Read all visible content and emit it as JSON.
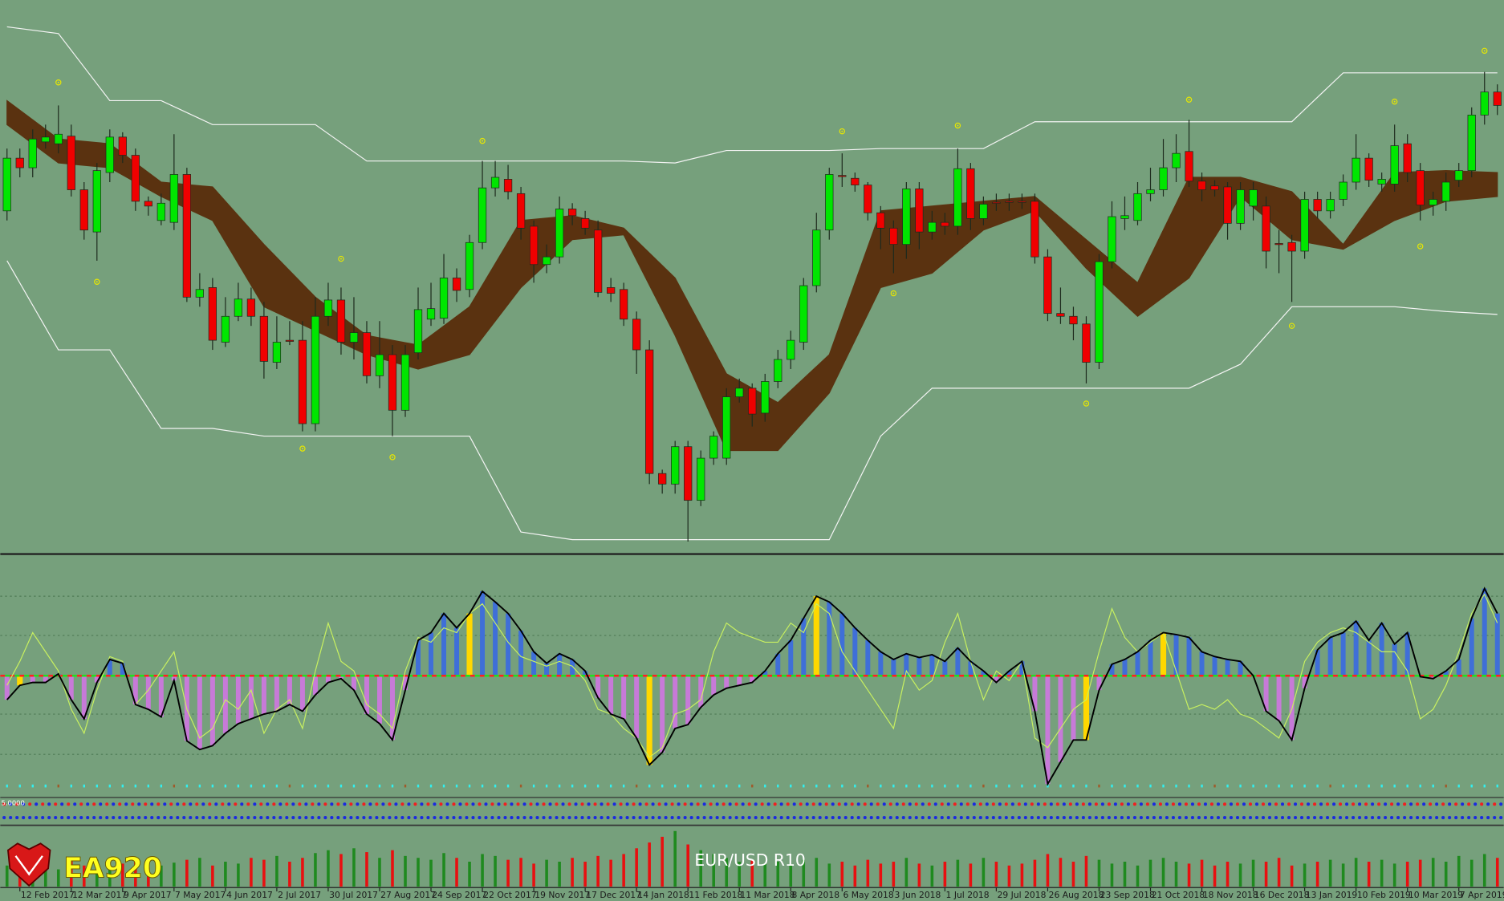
{
  "chart_data": [
    {
      "type": "candlestick",
      "ylim": [
        22,
        600
      ],
      "up_color": "#00e600",
      "down_color": "#f00000",
      "open": [
        380,
        435,
        425,
        452,
        450,
        458,
        402,
        358,
        420,
        457,
        438,
        390,
        370,
        368,
        418,
        290,
        300,
        243,
        270,
        288,
        270,
        222,
        245,
        245,
        158,
        270,
        287,
        243,
        253,
        208,
        230,
        172,
        232,
        267,
        268,
        310,
        298,
        347,
        404,
        413,
        398,
        364,
        324,
        332,
        382,
        372,
        360,
        300,
        298,
        267,
        235,
        106,
        95,
        134,
        78,
        122,
        122,
        186,
        195,
        169,
        202,
        225,
        243,
        302,
        360,
        417,
        414,
        407,
        378,
        362,
        345,
        403,
        358,
        368,
        364,
        424,
        372,
        389,
        390,
        390,
        390,
        332,
        273,
        270,
        262,
        222,
        327,
        372,
        370,
        398,
        402,
        425,
        442,
        411,
        406,
        405,
        367,
        385,
        385,
        346,
        347,
        338,
        392,
        380,
        392,
        410,
        435,
        408,
        408,
        450,
        422,
        386,
        390,
        412,
        422,
        480,
        504
      ],
      "high": [
        445,
        445,
        465,
        470,
        490,
        470,
        410,
        430,
        465,
        462,
        445,
        395,
        398,
        460,
        425,
        315,
        310,
        290,
        305,
        300,
        285,
        270,
        265,
        265,
        290,
        305,
        300,
        290,
        265,
        265,
        240,
        240,
        300,
        305,
        335,
        320,
        355,
        432,
        432,
        428,
        405,
        370,
        345,
        395,
        388,
        380,
        370,
        310,
        305,
        275,
        245,
        110,
        140,
        140,
        130,
        150,
        195,
        205,
        200,
        210,
        235,
        255,
        310,
        378,
        425,
        440,
        420,
        410,
        385,
        370,
        410,
        410,
        380,
        378,
        445,
        430,
        395,
        398,
        398,
        398,
        398,
        340,
        300,
        280,
        270,
        335,
        390,
        395,
        410,
        425,
        455,
        460,
        475,
        420,
        412,
        410,
        410,
        410,
        395,
        360,
        355,
        400,
        400,
        400,
        418,
        460,
        440,
        420,
        470,
        460,
        430,
        400,
        420,
        430,
        488,
        525,
        512
      ],
      "low": [
        370,
        415,
        415,
        445,
        440,
        395,
        350,
        328,
        410,
        430,
        380,
        375,
        365,
        360,
        285,
        280,
        235,
        238,
        265,
        260,
        205,
        215,
        240,
        150,
        150,
        260,
        230,
        225,
        200,
        195,
        145,
        165,
        225,
        260,
        262,
        285,
        290,
        340,
        395,
        392,
        350,
        305,
        315,
        325,
        365,
        355,
        290,
        285,
        260,
        210,
        95,
        85,
        85,
        35,
        72,
        115,
        115,
        180,
        155,
        160,
        195,
        215,
        235,
        295,
        350,
        405,
        400,
        370,
        340,
        315,
        330,
        340,
        350,
        355,
        355,
        360,
        365,
        380,
        380,
        382,
        325,
        265,
        262,
        245,
        200,
        215,
        320,
        360,
        365,
        390,
        395,
        410,
        405,
        390,
        395,
        350,
        360,
        370,
        320,
        315,
        285,
        330,
        372,
        372,
        385,
        402,
        405,
        400,
        400,
        410,
        370,
        375,
        380,
        405,
        415,
        470,
        480
      ],
      "close": [
        435,
        425,
        455,
        457,
        460,
        402,
        360,
        422,
        457,
        438,
        390,
        385,
        388,
        418,
        290,
        298,
        245,
        270,
        288,
        270,
        223,
        243,
        244,
        158,
        270,
        287,
        243,
        253,
        208,
        230,
        172,
        230,
        277,
        278,
        310,
        297,
        347,
        404,
        415,
        400,
        362,
        324,
        332,
        382,
        375,
        362,
        295,
        294,
        267,
        235,
        106,
        95,
        134,
        78,
        122,
        145,
        186,
        195,
        168,
        202,
        225,
        245,
        302,
        360,
        418,
        416,
        407,
        378,
        362,
        345,
        403,
        358,
        368,
        364,
        424,
        372,
        387,
        388,
        389,
        389,
        332,
        273,
        270,
        262,
        222,
        327,
        374,
        375,
        398,
        402,
        425,
        440,
        411,
        402,
        402,
        367,
        402,
        402,
        338,
        345,
        338,
        392,
        380,
        392,
        410,
        435,
        412,
        413,
        448,
        420,
        386,
        392,
        410,
        422,
        480,
        504,
        490
      ],
      "indicator_x": [
        0,
        4,
        8,
        12,
        16,
        20,
        24,
        28,
        32,
        36,
        40,
        44,
        48,
        52,
        56,
        60,
        64,
        68,
        72,
        76,
        80,
        84,
        88,
        92,
        96,
        100,
        104,
        108,
        112,
        116
      ],
      "cloud_upper": [
        495,
        455,
        450,
        410,
        405,
        345,
        290,
        250,
        240,
        280,
        370,
        375,
        362,
        310,
        210,
        180,
        230,
        380,
        385,
        390,
        395,
        350,
        305,
        415,
        415,
        400,
        345,
        420,
        422,
        420
      ],
      "cloud_lower": [
        470,
        430,
        425,
        395,
        370,
        280,
        255,
        230,
        215,
        230,
        300,
        350,
        355,
        250,
        130,
        130,
        190,
        300,
        315,
        360,
        380,
        320,
        270,
        310,
        395,
        350,
        340,
        370,
        390,
        395
      ],
      "cloud_color": "#5a3210",
      "channel_upper": [
        572,
        565,
        495,
        495,
        470,
        470,
        470,
        432,
        432,
        432,
        432,
        432,
        432,
        430,
        443,
        443,
        443,
        445,
        445,
        445,
        473,
        473,
        473,
        473,
        473,
        473,
        524,
        524,
        524,
        524
      ],
      "channel_lower": [
        328,
        235,
        235,
        153,
        153,
        145,
        145,
        145,
        145,
        145,
        45,
        37,
        37,
        37,
        37,
        37,
        37,
        145,
        195,
        195,
        195,
        195,
        195,
        195,
        220,
        280,
        280,
        280,
        275,
        272
      ],
      "channel_color": "#f4f4f4",
      "fractals": {
        "x": [
          4,
          7,
          23,
          26,
          30,
          37,
          65,
          69,
          74,
          84,
          92,
          100,
          108,
          110,
          115
        ],
        "values": [
          514,
          306,
          132,
          330,
          123,
          453,
          463,
          294,
          469,
          179,
          496,
          260,
          494,
          343,
          547
        ],
        "color": "#e8e800"
      }
    },
    {
      "type": "line",
      "ylim": [
        -125,
        125
      ],
      "levels": [
        83,
        42,
        -40,
        -82
      ],
      "values": [
        -25,
        -10,
        -7,
        -7,
        2,
        -25,
        -45,
        -7,
        17,
        13,
        -30,
        -35,
        -43,
        -5,
        -68,
        -77,
        -73,
        -60,
        -50,
        -45,
        -40,
        -37,
        -30,
        -37,
        -20,
        -7,
        -3,
        -15,
        -40,
        -50,
        -67,
        -15,
        37,
        45,
        65,
        50,
        65,
        88,
        77,
        65,
        47,
        25,
        13,
        23,
        17,
        5,
        -23,
        -40,
        -45,
        -65,
        -93,
        -80,
        -55,
        -51,
        -33,
        -20,
        -13,
        -10,
        -7,
        5,
        23,
        37,
        60,
        83,
        77,
        65,
        50,
        37,
        25,
        17,
        23,
        19,
        22,
        15,
        29,
        15,
        5,
        -7,
        5,
        15,
        -37,
        -113,
        -90,
        -67,
        -67,
        -15,
        12,
        17,
        25,
        37,
        45,
        43,
        40,
        25,
        20,
        17,
        15,
        0,
        -37,
        -47,
        -67,
        -13,
        27,
        40,
        45,
        57,
        37,
        55,
        33,
        45,
        -1,
        -3,
        5,
        17,
        60,
        91,
        65
      ],
      "signal": [
        -10,
        15,
        45,
        25,
        5,
        -35,
        -60,
        -15,
        20,
        15,
        -30,
        -15,
        5,
        25,
        -35,
        -65,
        -55,
        -25,
        -35,
        -15,
        -60,
        -35,
        -25,
        -55,
        5,
        55,
        15,
        5,
        -30,
        -40,
        -55,
        5,
        40,
        35,
        50,
        45,
        65,
        75,
        55,
        35,
        20,
        15,
        10,
        15,
        10,
        -5,
        -35,
        -40,
        -55,
        -65,
        -85,
        -75,
        -40,
        -35,
        -25,
        25,
        55,
        45,
        40,
        35,
        35,
        55,
        45,
        75,
        65,
        25,
        5,
        -15,
        -35,
        -55,
        5,
        -15,
        -5,
        35,
        65,
        15,
        -25,
        5,
        -5,
        15,
        -65,
        -75,
        -55,
        -35,
        -25,
        25,
        70,
        40,
        25,
        35,
        45,
        5,
        -35,
        -30,
        -35,
        -25,
        -40,
        -45,
        -55,
        -65,
        -35,
        15,
        35,
        45,
        50,
        45,
        35,
        25,
        25,
        5,
        -45,
        -35,
        -10,
        25,
        65,
        85,
        55
      ],
      "signal_bars": [
        1,
        36,
        50,
        63,
        84,
        90
      ],
      "line_color": "#000000",
      "signal_color": "#c8f060",
      "positive_color": "#3f6fd8",
      "negative_color": "#c77ad8",
      "signal_bar_color": "#ffd800",
      "zero_colors": [
        "#ff2020",
        "#20e020"
      ]
    },
    {
      "type": "bar",
      "title": "EUR/USD R10",
      "ylim": [
        0,
        60
      ],
      "values": [
        22,
        24,
        20,
        26,
        18,
        30,
        22,
        28,
        20,
        24,
        26,
        20,
        22,
        25,
        28,
        30,
        22,
        26,
        24,
        30,
        28,
        32,
        26,
        30,
        35,
        38,
        34,
        40,
        36,
        30,
        38,
        32,
        30,
        28,
        35,
        30,
        26,
        34,
        32,
        28,
        30,
        24,
        28,
        26,
        30,
        26,
        32,
        28,
        34,
        40,
        46,
        52,
        58,
        44,
        38,
        34,
        30,
        26,
        28,
        24,
        26,
        22,
        28,
        30,
        24,
        26,
        22,
        28,
        24,
        26,
        30,
        24,
        22,
        26,
        28,
        24,
        30,
        26,
        22,
        24,
        28,
        34,
        30,
        26,
        32,
        28,
        24,
        26,
        22,
        28,
        30,
        26,
        24,
        28,
        22,
        26,
        24,
        28,
        26,
        30,
        22,
        24,
        26,
        28,
        24,
        30,
        26,
        28,
        24,
        26,
        28,
        30,
        26,
        32,
        28,
        34,
        30
      ],
      "up_color": "#1f8a1f",
      "down_color": "#e81010",
      "xticks": [
        {
          "value": 1,
          "label": "12 Feb 2017"
        },
        {
          "value": 5,
          "label": "12 Mar 2017"
        },
        {
          "value": 9,
          "label": "9 Apr 2017"
        },
        {
          "value": 13,
          "label": "7 May 2017"
        },
        {
          "value": 17,
          "label": "4 Jun 2017"
        },
        {
          "value": 21,
          "label": "2 Jul 2017"
        },
        {
          "value": 25,
          "label": "30 Jul 2017"
        },
        {
          "value": 29,
          "label": "27 Aug 2017"
        },
        {
          "value": 33,
          "label": "24 Sep 2017"
        },
        {
          "value": 37,
          "label": "22 Oct 2017"
        },
        {
          "value": 41,
          "label": "19 Nov 2017"
        },
        {
          "value": 45,
          "label": "17 Dec 2017"
        },
        {
          "value": 49,
          "label": "14 Jan 2018"
        },
        {
          "value": 53,
          "label": "11 Feb 2018"
        },
        {
          "value": 57,
          "label": "11 Mar 2018"
        },
        {
          "value": 61,
          "label": "8 Apr 2018"
        },
        {
          "value": 65,
          "label": "6 May 2018"
        },
        {
          "value": 69,
          "label": "3 Jun 2018"
        },
        {
          "value": 73,
          "label": "1 Jul 2018"
        },
        {
          "value": 77,
          "label": "29 Jul 2018"
        },
        {
          "value": 81,
          "label": "26 Aug 2018"
        },
        {
          "value": 85,
          "label": "23 Sep 2018"
        },
        {
          "value": 89,
          "label": "21 Oct 2018"
        },
        {
          "value": 93,
          "label": "18 Nov 2018"
        },
        {
          "value": 97,
          "label": "16 Dec 2018"
        },
        {
          "value": 101,
          "label": "13 Jan 2019"
        },
        {
          "value": 105,
          "label": "10 Feb 2019"
        },
        {
          "value": 109,
          "label": "10 Mar 2019"
        },
        {
          "value": 113,
          "label": "7 Apr 2019"
        }
      ]
    }
  ],
  "strength_panel": {
    "label": "5.0000"
  },
  "watermark": "EA920"
}
